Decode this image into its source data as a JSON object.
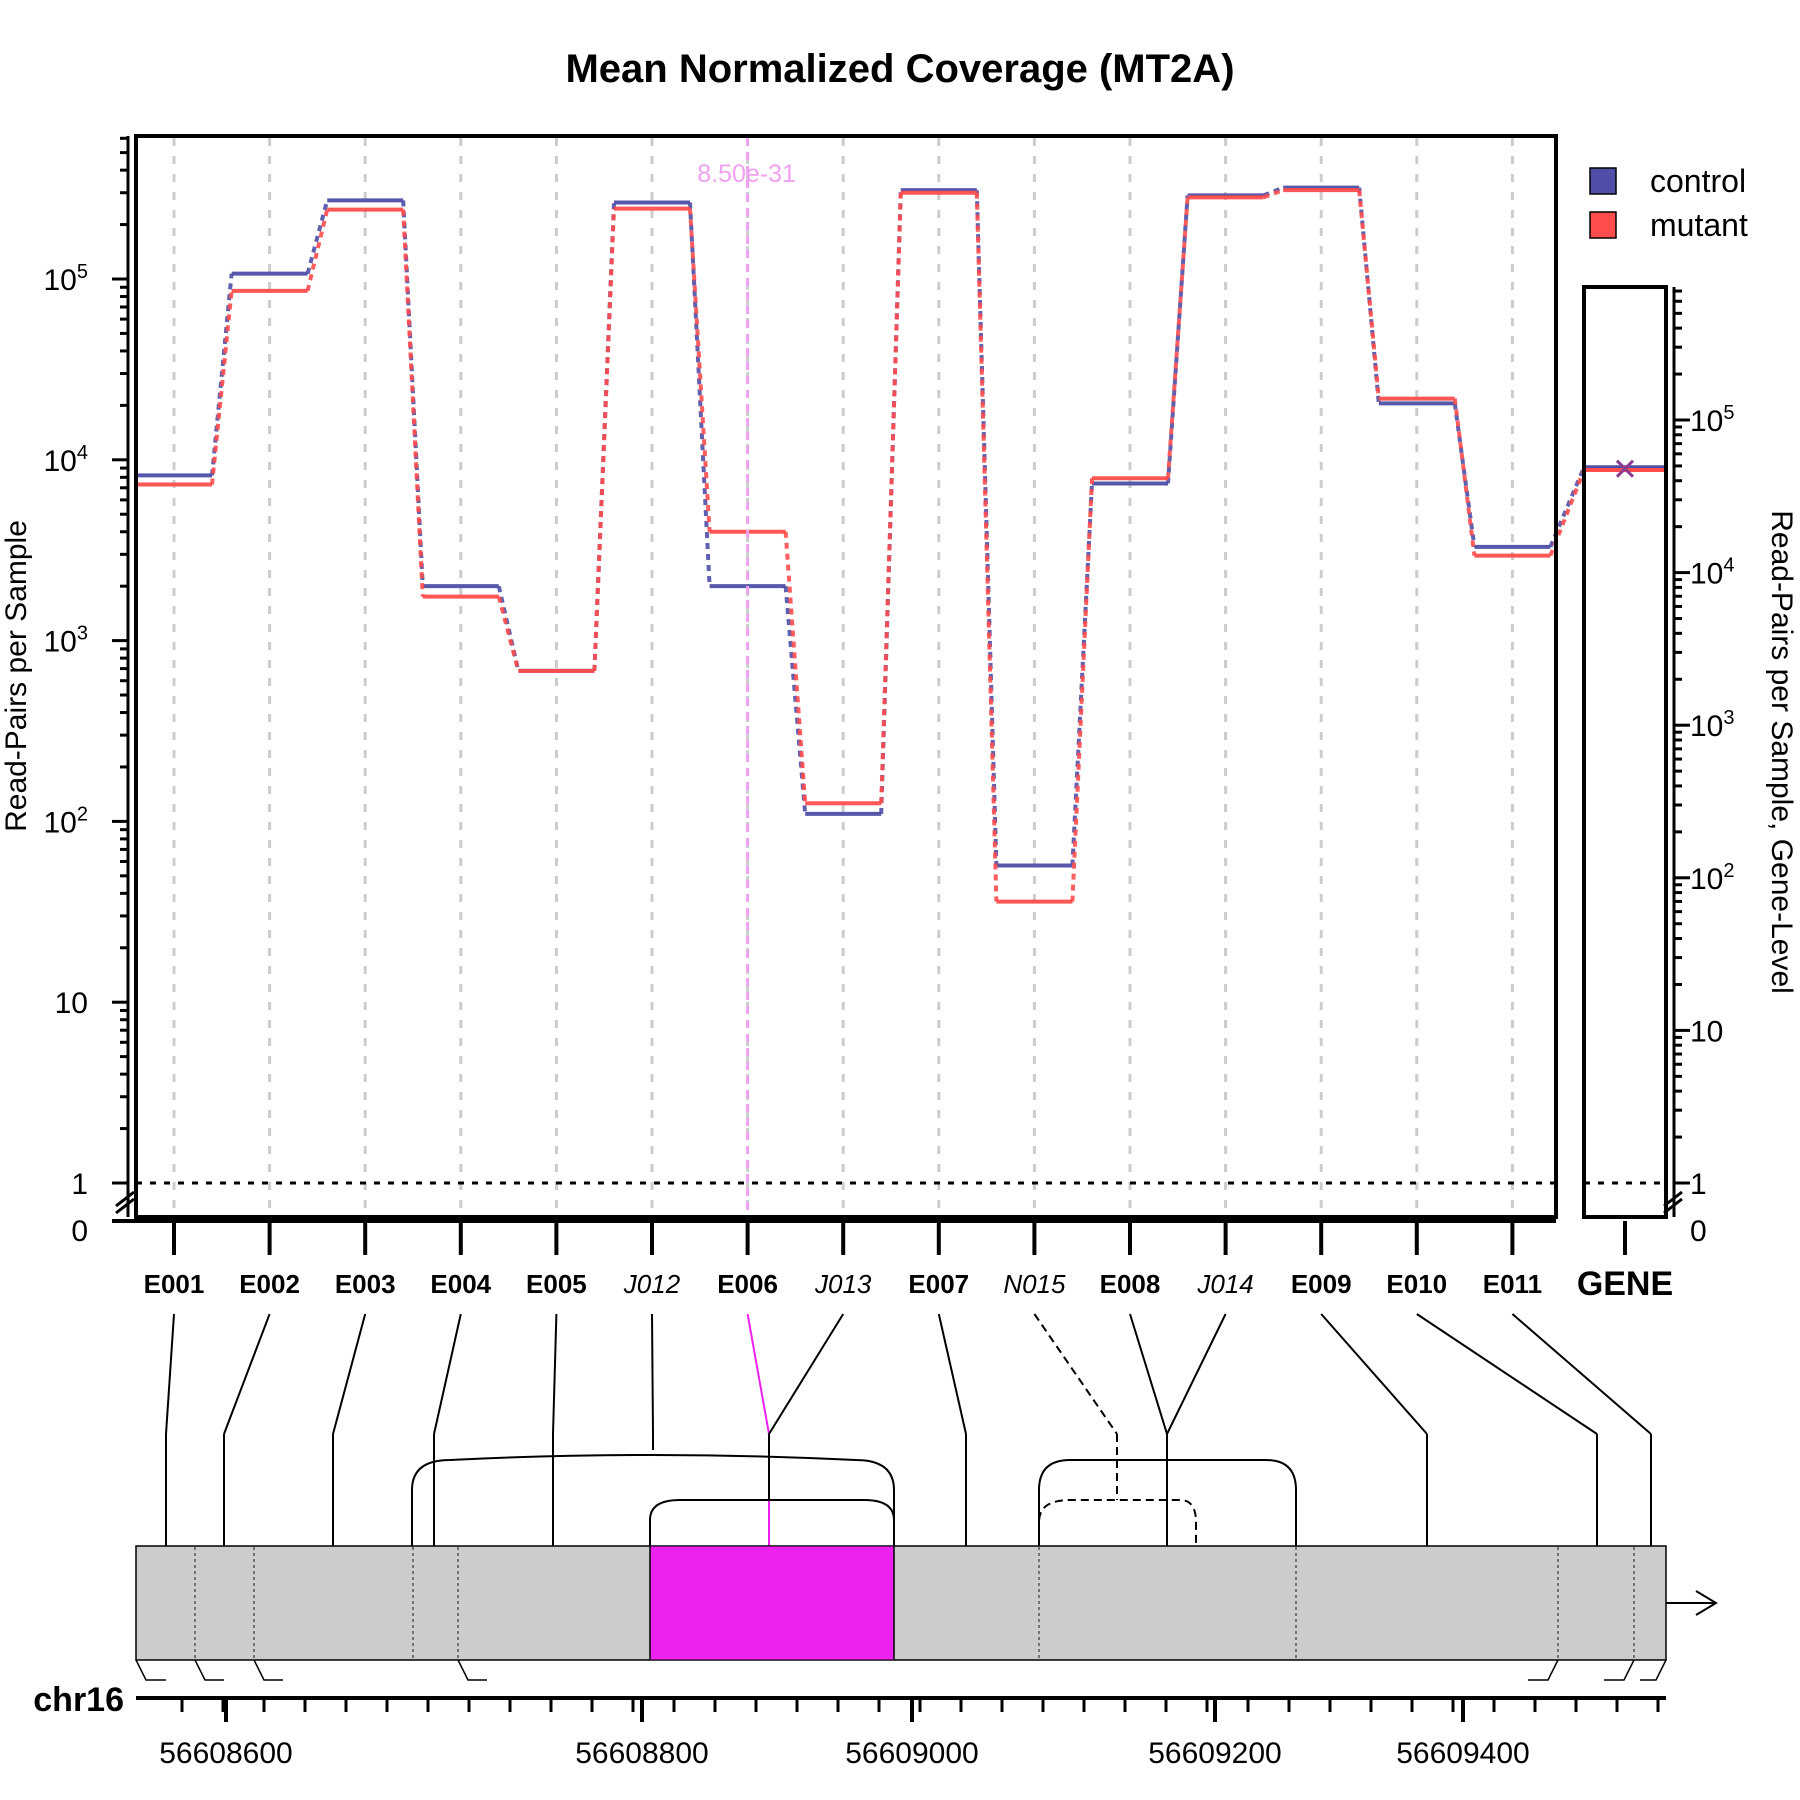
{
  "chart_data": {
    "type": "line",
    "title": "Mean Normalized Coverage (MT2A)",
    "ylabel": "Read-Pairs per Sample",
    "ylabel_right": "Read-Pairs per Sample, Gene-Level",
    "y_scale": "log",
    "y_ticks": [
      {
        "value": 0,
        "base": "0",
        "exp": ""
      },
      {
        "value": 1,
        "base": "1",
        "exp": ""
      },
      {
        "value": 10,
        "base": "10",
        "exp": ""
      },
      {
        "value": 100,
        "base": "10",
        "exp": "2"
      },
      {
        "value": 1000,
        "base": "10",
        "exp": "3"
      },
      {
        "value": 10000,
        "base": "10",
        "exp": "4"
      },
      {
        "value": 100000,
        "base": "10",
        "exp": "5"
      }
    ],
    "reference_line": 1,
    "grid": "vertical dashed",
    "legend_position": "top-right",
    "categories": [
      {
        "label": "E001",
        "style": "bold"
      },
      {
        "label": "E002",
        "style": "bold"
      },
      {
        "label": "E003",
        "style": "bold"
      },
      {
        "label": "E004",
        "style": "bold"
      },
      {
        "label": "E005",
        "style": "bold"
      },
      {
        "label": "J012",
        "style": "italic"
      },
      {
        "label": "E006",
        "style": "bold"
      },
      {
        "label": "J013",
        "style": "italic"
      },
      {
        "label": "E007",
        "style": "bold"
      },
      {
        "label": "N015",
        "style": "italic"
      },
      {
        "label": "E008",
        "style": "bold"
      },
      {
        "label": "J014",
        "style": "italic"
      },
      {
        "label": "E009",
        "style": "bold"
      },
      {
        "label": "E010",
        "style": "bold"
      },
      {
        "label": "E011",
        "style": "bold"
      }
    ],
    "series": [
      {
        "name": "control",
        "color": "#4F4FA8",
        "values": [
          8200,
          107000,
          272000,
          2000,
          680,
          265000,
          2000,
          110,
          310000,
          57,
          7400,
          290000,
          320000,
          20500,
          3300
        ]
      },
      {
        "name": "mutant",
        "color": "#FF4D4D",
        "values": [
          7300,
          86000,
          242000,
          1750,
          680,
          245000,
          4000,
          126,
          300000,
          36,
          7900,
          283000,
          310000,
          21800,
          2950
        ]
      }
    ],
    "gene_panel": {
      "label": "GENE",
      "control": 49000,
      "mutant": 47000,
      "y_ticks": [
        {
          "value": 0,
          "base": "0",
          "exp": ""
        },
        {
          "value": 1,
          "base": "1",
          "exp": ""
        },
        {
          "value": 10,
          "base": "10",
          "exp": ""
        },
        {
          "value": 100,
          "base": "10",
          "exp": "2"
        },
        {
          "value": 1000,
          "base": "10",
          "exp": "3"
        },
        {
          "value": 10000,
          "base": "10",
          "exp": "4"
        },
        {
          "value": 100000,
          "base": "10",
          "exp": "5"
        }
      ]
    },
    "highlight": {
      "feature": "E006",
      "pvalue": "8.50e-31",
      "color": "#EE22EE"
    },
    "genome": {
      "chromosome": "chr16",
      "tick_labels": [
        "56608600",
        "56608800",
        "56609000",
        "56609200",
        "56609400"
      ],
      "tick_values": [
        56608600,
        56608800,
        56609000,
        56609200,
        56609400
      ],
      "strand": "+"
    }
  }
}
